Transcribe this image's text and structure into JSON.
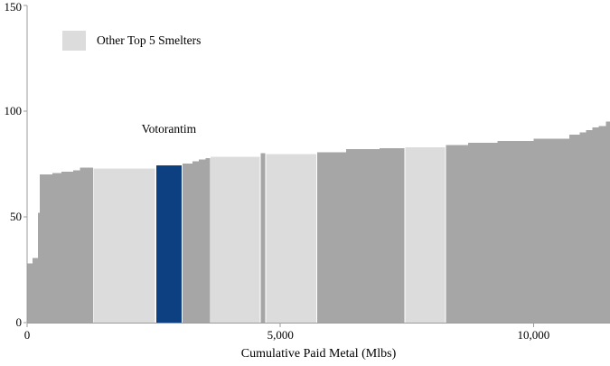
{
  "chart_data": {
    "type": "bar",
    "subtype": "cost-curve-step-chart",
    "title": "",
    "xlabel": "Cumulative Paid Metal (Mlbs)",
    "ylabel": "",
    "xlim": [
      0,
      11510
    ],
    "ylim": [
      0,
      150
    ],
    "grid": false,
    "legend_position": "top-left-inside",
    "xticks": [
      {
        "value": 0,
        "label": "0"
      },
      {
        "value": 5000,
        "label": "5,000"
      },
      {
        "value": 10000,
        "label": "10,000"
      }
    ],
    "yticks": [
      {
        "value": 0,
        "label": "0"
      },
      {
        "value": 50,
        "label": "50"
      },
      {
        "value": 100,
        "label": "100"
      },
      {
        "value": 150,
        "label": "150"
      }
    ],
    "legend": [
      {
        "label": "Other Top 5 Smelters",
        "color": "#dcdcdc"
      }
    ],
    "annotations": [
      {
        "label": "Votorantim",
        "x": 2800,
        "y": 91.5
      }
    ],
    "colors": {
      "gray": "#a6a6a6",
      "light": "#dcdcdc",
      "blue": "#0d4080",
      "axis": "#9b9b9b",
      "text": "#000000"
    },
    "segments": [
      {
        "from": 0,
        "to": 107,
        "value": 28,
        "type": "gray"
      },
      {
        "from": 107,
        "to": 214,
        "value": 30.5,
        "type": "gray"
      },
      {
        "from": 214,
        "to": 250,
        "value": 52,
        "type": "gray"
      },
      {
        "from": 250,
        "to": 500,
        "value": 70,
        "type": "gray"
      },
      {
        "from": 500,
        "to": 680,
        "value": 70.7,
        "type": "gray"
      },
      {
        "from": 680,
        "to": 910,
        "value": 71.4,
        "type": "gray"
      },
      {
        "from": 910,
        "to": 1040,
        "value": 72,
        "type": "gray"
      },
      {
        "from": 1040,
        "to": 1300,
        "value": 73.2,
        "type": "gray"
      },
      {
        "from": 1300,
        "to": 2540,
        "value": 72.8,
        "type": "light",
        "name": "Other Top 5 Smelter"
      },
      {
        "from": 2540,
        "to": 3070,
        "value": 74.4,
        "type": "blue",
        "name": "Votorantim"
      },
      {
        "from": 3070,
        "to": 3270,
        "value": 75.3,
        "type": "gray"
      },
      {
        "from": 3270,
        "to": 3390,
        "value": 76.3,
        "type": "gray"
      },
      {
        "from": 3390,
        "to": 3520,
        "value": 77.2,
        "type": "gray"
      },
      {
        "from": 3520,
        "to": 3610,
        "value": 77.8,
        "type": "gray"
      },
      {
        "from": 3610,
        "to": 4610,
        "value": 78.5,
        "type": "light",
        "name": "Other Top 5 Smelter"
      },
      {
        "from": 4610,
        "to": 4700,
        "value": 80.2,
        "type": "gray"
      },
      {
        "from": 4700,
        "to": 5730,
        "value": 79.6,
        "type": "light",
        "name": "Other Top 5 Smelter"
      },
      {
        "from": 5730,
        "to": 6300,
        "value": 80.6,
        "type": "gray"
      },
      {
        "from": 6300,
        "to": 6960,
        "value": 82,
        "type": "gray"
      },
      {
        "from": 6960,
        "to": 7450,
        "value": 82.5,
        "type": "gray"
      },
      {
        "from": 7450,
        "to": 8270,
        "value": 82.8,
        "type": "light",
        "name": "Other Top 5 Smelter"
      },
      {
        "from": 8270,
        "to": 8710,
        "value": 84,
        "type": "gray"
      },
      {
        "from": 8710,
        "to": 9290,
        "value": 85,
        "type": "gray"
      },
      {
        "from": 9290,
        "to": 10000,
        "value": 86,
        "type": "gray"
      },
      {
        "from": 10000,
        "to": 10710,
        "value": 87,
        "type": "gray"
      },
      {
        "from": 10710,
        "to": 10910,
        "value": 88.8,
        "type": "gray"
      },
      {
        "from": 10910,
        "to": 11040,
        "value": 89.9,
        "type": "gray"
      },
      {
        "from": 11040,
        "to": 11160,
        "value": 91,
        "type": "gray"
      },
      {
        "from": 11160,
        "to": 11290,
        "value": 92.3,
        "type": "gray"
      },
      {
        "from": 11290,
        "to": 11430,
        "value": 93,
        "type": "gray"
      },
      {
        "from": 11430,
        "to": 11510,
        "value": 95,
        "type": "gray"
      }
    ]
  }
}
